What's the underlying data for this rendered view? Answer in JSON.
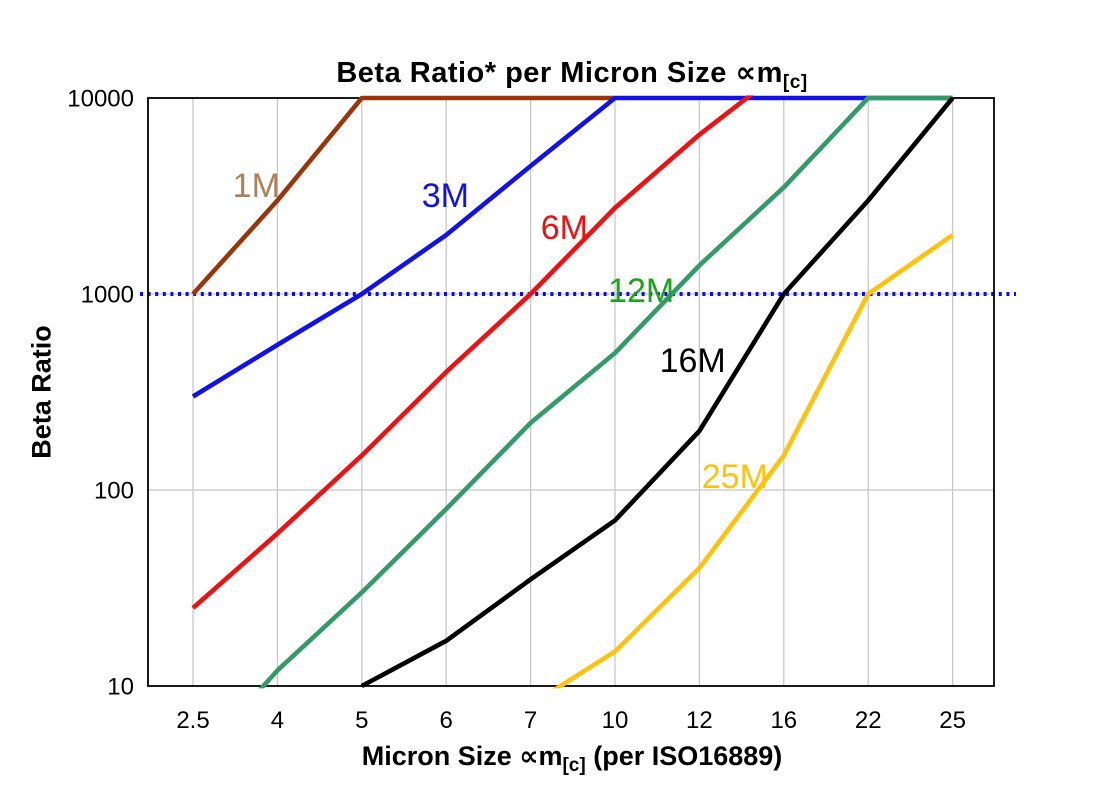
{
  "title": {
    "main": "Beta Ratio* per Micron Size ",
    "prop": "∝m",
    "sub": "[c]"
  },
  "y_axis": {
    "label": "Beta Ratio",
    "ticks": [
      "10000",
      "1000",
      "100",
      "10"
    ]
  },
  "x_axis": {
    "label_pre": "Micron Size ",
    "prop": "∝m",
    "sub": "[c]",
    "label_post": " (per ISO16889)",
    "ticks": [
      "2.5",
      "4",
      "5",
      "6",
      "7",
      "10",
      "12",
      "16",
      "22",
      "25"
    ]
  },
  "chart_data": {
    "type": "line",
    "title": "Beta Ratio* per Micron Size ∝m[c]",
    "xlabel": "Micron Size ∝m[c] (per ISO16889)",
    "ylabel": "Beta Ratio",
    "x_scale": "category",
    "y_scale": "log",
    "ylim": [
      10,
      10000
    ],
    "grid": {
      "vertical": true,
      "horizontal_at": [
        100,
        1000
      ],
      "color": "#c8c8c8"
    },
    "reference_line": {
      "value": 1000,
      "color": "#0b0bf0",
      "style": "dotted",
      "extends_past_frame": true
    },
    "categories": [
      2.5,
      4,
      5,
      6,
      7,
      10,
      12,
      16,
      22,
      25
    ],
    "series": [
      {
        "name": "1M",
        "color": "#993508",
        "label_color": "#ac8059",
        "values": [
          1000,
          3000,
          10000,
          10000,
          10000,
          10000,
          null,
          null,
          null,
          null
        ],
        "label_anchor": {
          "xi": 0.75,
          "value": 3600
        }
      },
      {
        "name": "3M",
        "color": "#1212e8",
        "label_color": "#1212e8",
        "values": [
          300,
          550,
          1000,
          2000,
          4500,
          10000,
          10000,
          10000,
          10000,
          10000
        ],
        "label_anchor": {
          "xi": 2.99,
          "value": 3200
        }
      },
      {
        "name": "6M",
        "color": "#ee1111",
        "label_color": "#ee1111",
        "values": [
          25,
          60,
          150,
          400,
          1000,
          2750,
          6500,
          14000,
          null,
          null
        ],
        "label_anchor": {
          "xi": 4.4,
          "value": 2200
        }
      },
      {
        "name": "12M",
        "color": "#349a68",
        "label_color": "#1fa31f",
        "values": [
          4,
          12,
          30,
          80,
          220,
          500,
          1400,
          3500,
          10000,
          10000
        ],
        "label_anchor": {
          "xi": 5.31,
          "value": 1050
        }
      },
      {
        "name": "16M",
        "color": "#000000",
        "label_color": "#000000",
        "values": [
          null,
          null,
          10,
          17,
          35,
          70,
          200,
          1000,
          3000,
          10000
        ],
        "label_anchor": {
          "xi": 5.92,
          "value": 460
        }
      },
      {
        "name": "25M",
        "color": "#ffc20e",
        "label_color": "#ffc20e",
        "values": [
          null,
          null,
          null,
          null,
          8,
          15,
          40,
          150,
          1000,
          2000
        ],
        "label_anchor": {
          "xi": 6.42,
          "value": 118
        }
      }
    ]
  }
}
